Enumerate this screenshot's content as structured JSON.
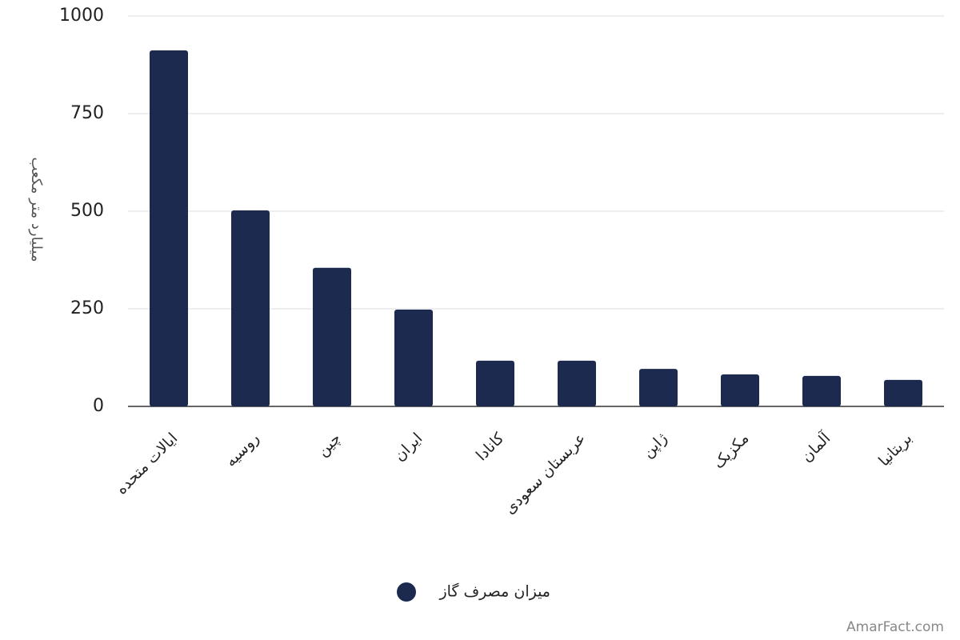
{
  "chart_data": {
    "type": "bar",
    "y_label": "میلیارد متر مکعب",
    "categories": [
      "ایالات متحده",
      "روسیه",
      "چین",
      "ایران",
      "کانادا",
      "عربستان سعودی",
      "ژاپن",
      "مکزیک",
      "آلمان",
      "بریتانیا"
    ],
    "series": [
      {
        "name": "میزان مصرف گاز",
        "color": "#1b2a4e",
        "values": [
          912,
          502,
          355,
          248,
          117,
          117,
          96,
          82,
          78,
          68
        ]
      }
    ],
    "ylim": [
      0,
      1000
    ],
    "yticks": [
      0,
      250,
      500,
      750,
      1000
    ],
    "grid": true,
    "watermark": "AmarFact.com"
  }
}
